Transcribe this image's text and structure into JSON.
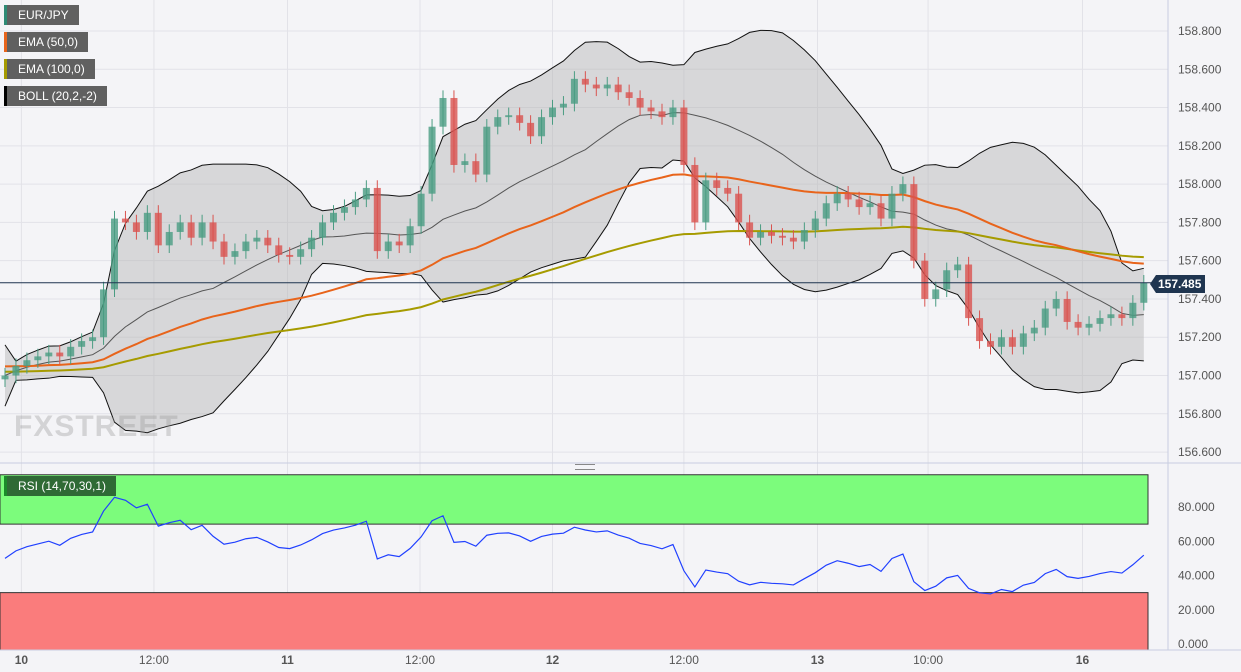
{
  "legend": [
    {
      "label": "EUR/JPY",
      "color": "#2e8b75"
    },
    {
      "label": "EMA (50,0)",
      "color": "#e8641b"
    },
    {
      "label": "EMA (100,0)",
      "color": "#a69b00"
    },
    {
      "label": "BOLL (20,2,-2)",
      "color": "#000000"
    }
  ],
  "rsi_legend": {
    "label": "RSI (14,70,30,1)",
    "color": "#1b8a2a"
  },
  "watermark": "FXSTREET",
  "current_price": "157.485",
  "chart_data": {
    "type": "candlestick",
    "symbol": "EUR/JPY",
    "ylim": [
      156.55,
      158.9
    ],
    "y_ticks": [
      "158.800",
      "158.600",
      "158.400",
      "158.200",
      "158.000",
      "157.800",
      "157.600",
      "157.400",
      "157.200",
      "157.000",
      "156.800",
      "156.600"
    ],
    "y_tick_values": [
      158.8,
      158.6,
      158.4,
      158.2,
      158.0,
      157.8,
      157.6,
      157.4,
      157.2,
      157.0,
      156.8,
      156.6
    ],
    "rsi_ticks": [
      "80.000",
      "60.000",
      "40.000",
      "20.000",
      "0.000"
    ],
    "rsi_tick_values": [
      80,
      60,
      40,
      20,
      0
    ],
    "rsi_overbought": 70,
    "rsi_oversold": 30,
    "x_labels": [
      {
        "label": "10",
        "index": 1.5
      },
      {
        "label": "12:00",
        "index": 13.6
      },
      {
        "label": "11",
        "index": 25.8
      },
      {
        "label": "12:00",
        "index": 37.9
      },
      {
        "label": "12",
        "index": 50
      },
      {
        "label": "12:00",
        "index": 62
      },
      {
        "label": "13",
        "index": 74.2
      },
      {
        "label": "10:00",
        "index": 84.3
      },
      {
        "label": "16",
        "index": 98.4
      }
    ],
    "closes": [
      157.0,
      157.05,
      157.08,
      157.1,
      157.12,
      157.1,
      157.15,
      157.18,
      157.2,
      157.45,
      157.82,
      157.8,
      157.75,
      157.85,
      157.68,
      157.75,
      157.8,
      157.72,
      157.8,
      157.7,
      157.62,
      157.65,
      157.7,
      157.72,
      157.68,
      157.63,
      157.62,
      157.66,
      157.72,
      157.8,
      157.85,
      157.88,
      157.92,
      157.98,
      157.65,
      157.7,
      157.68,
      157.78,
      157.95,
      158.3,
      158.45,
      158.1,
      158.12,
      158.05,
      158.3,
      158.35,
      158.36,
      158.32,
      158.25,
      158.35,
      158.4,
      158.42,
      158.55,
      158.52,
      158.5,
      158.52,
      158.48,
      158.45,
      158.4,
      158.38,
      158.35,
      158.4,
      158.1,
      157.8,
      158.02,
      157.98,
      157.95,
      157.8,
      157.72,
      157.75,
      157.73,
      157.72,
      157.7,
      157.76,
      157.82,
      157.9,
      157.95,
      157.92,
      157.88,
      157.9,
      157.82,
      157.95,
      158.0,
      157.6,
      157.4,
      157.45,
      157.55,
      157.58,
      157.3,
      157.18,
      157.15,
      157.2,
      157.15,
      157.22,
      157.25,
      157.35,
      157.4,
      157.28,
      157.25,
      157.27,
      157.3,
      157.32,
      157.3,
      157.38,
      157.485
    ]
  }
}
